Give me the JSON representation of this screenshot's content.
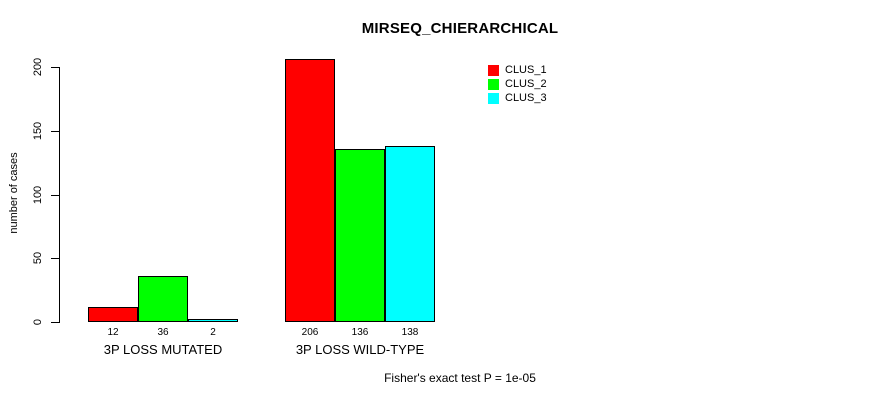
{
  "page": {
    "background": "#FFFFFF",
    "text_color": "#000000"
  },
  "chart_data": {
    "type": "bar",
    "title": "MIRSEQ_CHIERARCHICAL",
    "xlabel": "",
    "ylabel": "number of cases",
    "ylim": [
      0,
      200
    ],
    "yticks": [
      0,
      50,
      100,
      150,
      200
    ],
    "grid": false,
    "categories": [
      "3P LOSS MUTATED",
      "3P LOSS WILD-TYPE"
    ],
    "series": [
      {
        "name": "CLUS_1",
        "color": "#FF0000",
        "values": [
          12,
          206
        ]
      },
      {
        "name": "CLUS_2",
        "color": "#00FF00",
        "values": [
          36,
          136
        ]
      },
      {
        "name": "CLUS_3",
        "color": "#00FFFF",
        "values": [
          2,
          138
        ]
      }
    ],
    "bar_value_labels": [
      [
        "12",
        "36",
        "2"
      ],
      [
        "206",
        "136",
        "138"
      ]
    ],
    "legend": {
      "position": "top-right-inside",
      "entries": [
        "CLUS_1",
        "CLUS_2",
        "CLUS_3"
      ]
    },
    "annotation": "Fisher's exact test P = 1e-05",
    "bar_border_color": "#000000",
    "axis_color": "#000000"
  }
}
